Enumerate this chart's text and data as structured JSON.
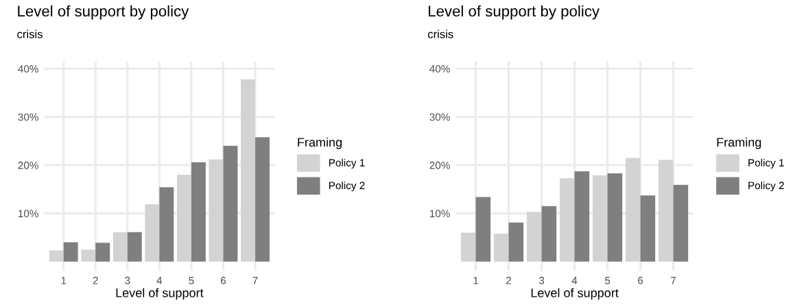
{
  "chart_data": [
    {
      "type": "bar",
      "title": "Level of support by policy",
      "subtitle": "crisis",
      "xlabel": "Level of support",
      "legend_title": "Framing",
      "categories": [
        "1",
        "2",
        "3",
        "4",
        "5",
        "6",
        "7"
      ],
      "series": [
        {
          "name": "Policy 1",
          "color": "#d3d3d3",
          "values": [
            2.3,
            2.5,
            6.1,
            11.9,
            18.0,
            21.2,
            37.8
          ]
        },
        {
          "name": "Policy 2",
          "color": "#7f7f7f",
          "values": [
            4.0,
            3.9,
            6.1,
            15.4,
            20.6,
            24.0,
            25.8
          ]
        }
      ],
      "ylim": [
        -1.9,
        41.5
      ],
      "yticks": [
        {
          "value": 10,
          "label": "10%"
        },
        {
          "value": 20,
          "label": "20%"
        },
        {
          "value": 30,
          "label": "30%"
        },
        {
          "value": 40,
          "label": "40%"
        }
      ],
      "grid": true,
      "legend": "right"
    },
    {
      "type": "bar",
      "title": "Level of support by policy",
      "subtitle": "crisis",
      "xlabel": "Level of support",
      "legend_title": "Framing",
      "categories": [
        "1",
        "2",
        "3",
        "4",
        "5",
        "6",
        "7"
      ],
      "series": [
        {
          "name": "Policy 1",
          "color": "#d3d3d3",
          "values": [
            6.0,
            5.8,
            10.3,
            17.3,
            17.9,
            21.5,
            21.1
          ]
        },
        {
          "name": "Policy 2",
          "color": "#7f7f7f",
          "values": [
            13.4,
            8.1,
            11.5,
            18.7,
            18.3,
            13.7,
            15.9
          ]
        }
      ],
      "ylim": [
        -1.9,
        41.5
      ],
      "yticks": [
        {
          "value": 10,
          "label": "10%"
        },
        {
          "value": 20,
          "label": "20%"
        },
        {
          "value": 30,
          "label": "30%"
        },
        {
          "value": 40,
          "label": "40%"
        }
      ],
      "grid": true,
      "legend": "right"
    }
  ]
}
